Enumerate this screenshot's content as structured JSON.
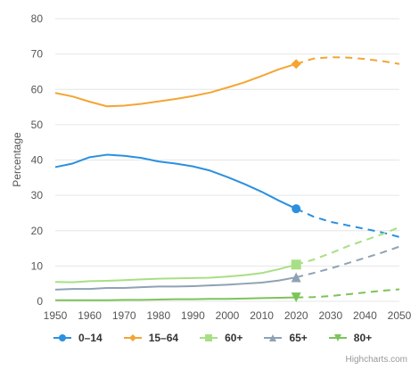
{
  "chart_data": {
    "type": "line",
    "title": "",
    "xlabel": "",
    "ylabel": "Percentage",
    "xlim": [
      1950,
      2050
    ],
    "ylim": [
      0,
      80
    ],
    "x_ticks": [
      1950,
      1960,
      1970,
      1980,
      1990,
      2000,
      2010,
      2020,
      2030,
      2040,
      2050
    ],
    "y_ticks": [
      0,
      10,
      20,
      30,
      40,
      50,
      60,
      70,
      80
    ],
    "grid": true,
    "legend_position": "bottom",
    "projection_start": 2020,
    "x": [
      1950,
      1955,
      1960,
      1965,
      1970,
      1975,
      1980,
      1985,
      1990,
      1995,
      2000,
      2005,
      2010,
      2015,
      2020,
      2025,
      2030,
      2035,
      2040,
      2045,
      2050
    ],
    "series": [
      {
        "name": "0–14",
        "color": "#2b90e0",
        "marker": "circle",
        "values": [
          38,
          39,
          40.8,
          41.5,
          41.2,
          40.6,
          39.6,
          39,
          38.2,
          37,
          35.2,
          33.2,
          31,
          28.5,
          26.2,
          24,
          22.5,
          21.5,
          20.5,
          19.5,
          18.2
        ]
      },
      {
        "name": "15–64",
        "color": "#f4a532",
        "marker": "diamond",
        "values": [
          59,
          58,
          56.5,
          55.2,
          55.4,
          55.9,
          56.6,
          57.3,
          58.1,
          59.1,
          60.5,
          62,
          63.8,
          65.7,
          67.2,
          68.7,
          69.1,
          69,
          68.6,
          68,
          67.2
        ]
      },
      {
        "name": "60+",
        "color": "#a8df84",
        "marker": "square",
        "values": [
          5.5,
          5.4,
          5.7,
          5.8,
          6.0,
          6.2,
          6.4,
          6.5,
          6.6,
          6.7,
          7.0,
          7.4,
          8.0,
          9.1,
          10.4,
          11.8,
          13.6,
          15.6,
          17.3,
          19.0,
          21.0
        ]
      },
      {
        "name": "65+",
        "color": "#8fa2b4",
        "marker": "triangle",
        "values": [
          3.3,
          3.5,
          3.5,
          3.8,
          3.8,
          4.0,
          4.2,
          4.2,
          4.3,
          4.5,
          4.7,
          5.0,
          5.3,
          5.9,
          6.8,
          8.0,
          9.3,
          10.8,
          12.3,
          13.8,
          15.5
        ]
      },
      {
        "name": "80+",
        "color": "#7cc45a",
        "marker": "triangle-down",
        "values": [
          0.3,
          0.3,
          0.3,
          0.3,
          0.4,
          0.4,
          0.5,
          0.6,
          0.6,
          0.7,
          0.7,
          0.8,
          0.9,
          1.0,
          1.1,
          1.2,
          1.5,
          2.0,
          2.5,
          3.0,
          3.4
        ]
      }
    ]
  },
  "credits": "Highcharts.com"
}
